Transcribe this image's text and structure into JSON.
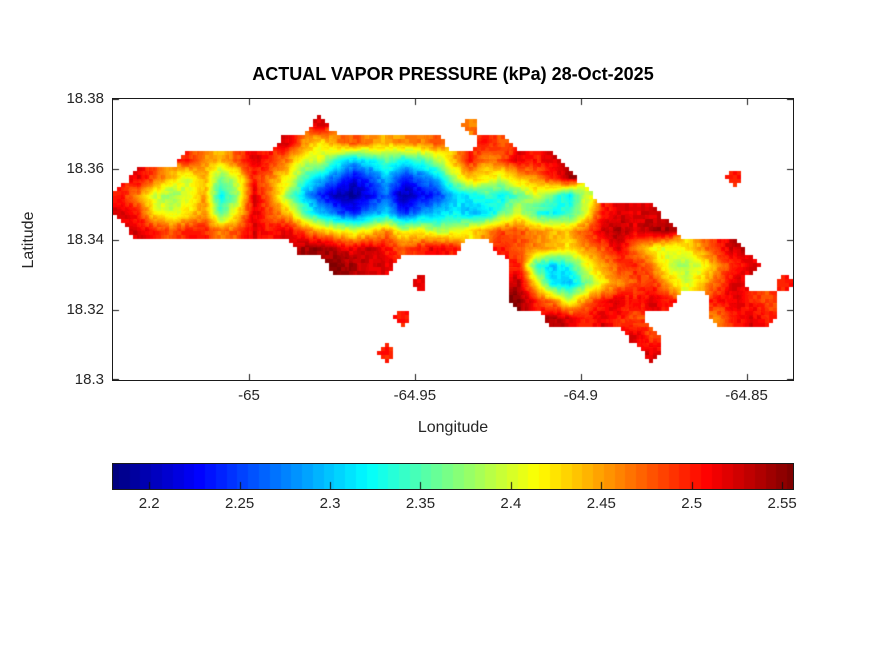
{
  "figure": {
    "title": "ACTUAL VAPOR PRESSURE (kPa) 28-Oct-2025",
    "xlabel": "Longitude",
    "ylabel": "Latitude",
    "background": "#ffffff",
    "axis_color": "#1a1a1a",
    "text_color": "#262626"
  },
  "chart_data": {
    "type": "heatmap",
    "title": "ACTUAL VAPOR PRESSURE (kPa) 28-Oct-2025",
    "xlabel": "Longitude",
    "ylabel": "Latitude",
    "units": "kPa",
    "xlim": [
      -65.041,
      -64.836
    ],
    "ylim": [
      18.3,
      18.38
    ],
    "x_ticks": [
      -65,
      -64.95,
      -64.9,
      -64.85
    ],
    "x_tick_labels": [
      "-65",
      "-64.95",
      "-64.9",
      "-64.85"
    ],
    "y_ticks": [
      18.3,
      18.32,
      18.34,
      18.36,
      18.38
    ],
    "y_tick_labels": [
      "18.3",
      "18.32",
      "18.34",
      "18.36",
      "18.38"
    ],
    "colormap": "jet",
    "grid_lines": false,
    "colorbar": {
      "orientation": "horizontal",
      "vmin": 2.18,
      "vmax": 2.556,
      "ticks": [
        2.2,
        2.25,
        2.3,
        2.35,
        2.4,
        2.45,
        2.5,
        2.55
      ],
      "tick_labels": [
        "2.2",
        "2.25",
        "2.3",
        "2.35",
        "2.4",
        "2.45",
        "2.5",
        "2.55"
      ]
    },
    "grid_definition": {
      "lon_min": -65.041,
      "lon_step": 0.005,
      "lat_max": 18.38,
      "lat_step": -0.005,
      "ncols": 41,
      "nrows": 16,
      "note": "actual vapor pressure in kPa; null = ocean (white)"
    },
    "values": [
      [
        null,
        null,
        null,
        null,
        null,
        null,
        null,
        null,
        null,
        null,
        null,
        null,
        null,
        null,
        null,
        null,
        null,
        null,
        null,
        null,
        null,
        null,
        null,
        null,
        null,
        null,
        null,
        null,
        null,
        null,
        null,
        null,
        null,
        null,
        null,
        null,
        null,
        null,
        null,
        null,
        null
      ],
      [
        null,
        null,
        null,
        null,
        null,
        null,
        null,
        null,
        null,
        null,
        null,
        null,
        2.52,
        null,
        null,
        null,
        null,
        null,
        null,
        null,
        null,
        2.46,
        null,
        null,
        null,
        null,
        null,
        null,
        null,
        null,
        null,
        null,
        null,
        null,
        null,
        null,
        null,
        null,
        null,
        null,
        null
      ],
      [
        null,
        null,
        null,
        null,
        null,
        null,
        null,
        null,
        null,
        null,
        2.52,
        2.46,
        2.42,
        2.46,
        2.48,
        2.46,
        2.44,
        2.46,
        2.46,
        2.48,
        null,
        null,
        2.5,
        2.48,
        null,
        null,
        null,
        null,
        null,
        null,
        null,
        null,
        null,
        null,
        null,
        null,
        null,
        null,
        null,
        null,
        null
      ],
      [
        null,
        null,
        null,
        null,
        2.5,
        2.46,
        2.44,
        2.48,
        2.52,
        2.5,
        2.46,
        2.4,
        2.4,
        2.34,
        2.3,
        2.32,
        2.36,
        2.32,
        2.34,
        2.38,
        2.44,
        2.5,
        2.46,
        2.48,
        2.52,
        2.5,
        2.52,
        null,
        null,
        null,
        null,
        null,
        null,
        null,
        null,
        null,
        null,
        null,
        null,
        null,
        null
      ],
      [
        null,
        2.52,
        2.48,
        2.44,
        2.4,
        2.44,
        2.36,
        2.4,
        2.5,
        2.46,
        2.42,
        2.35,
        2.3,
        2.26,
        2.22,
        2.25,
        2.3,
        2.24,
        2.26,
        2.3,
        2.38,
        2.44,
        2.42,
        2.4,
        2.44,
        2.46,
        2.5,
        2.54,
        null,
        null,
        null,
        null,
        null,
        null,
        null,
        null,
        null,
        2.5,
        null,
        null,
        null
      ],
      [
        2.5,
        2.46,
        2.4,
        2.37,
        2.4,
        2.45,
        2.32,
        2.38,
        2.52,
        2.46,
        2.38,
        2.3,
        2.24,
        2.2,
        2.19,
        2.22,
        2.27,
        2.19,
        2.22,
        2.24,
        2.3,
        2.32,
        2.34,
        2.32,
        2.36,
        2.4,
        2.36,
        2.31,
        2.4,
        null,
        null,
        null,
        null,
        null,
        null,
        null,
        null,
        null,
        null,
        null,
        null
      ],
      [
        2.52,
        2.5,
        2.42,
        2.4,
        2.42,
        2.46,
        2.35,
        2.42,
        2.52,
        2.48,
        2.44,
        2.36,
        2.3,
        2.26,
        2.24,
        2.28,
        2.3,
        2.24,
        2.28,
        2.3,
        2.32,
        2.3,
        2.3,
        2.36,
        2.4,
        2.34,
        2.32,
        2.34,
        2.4,
        2.5,
        2.52,
        2.52,
        2.52,
        null,
        null,
        null,
        null,
        null,
        null,
        null,
        null
      ],
      [
        null,
        2.52,
        2.5,
        2.48,
        2.5,
        2.5,
        2.46,
        2.48,
        2.52,
        2.5,
        2.52,
        2.48,
        2.44,
        2.42,
        2.4,
        2.42,
        2.46,
        2.4,
        2.42,
        2.38,
        2.4,
        2.42,
        2.46,
        2.48,
        2.48,
        2.46,
        2.44,
        2.44,
        2.48,
        2.52,
        2.54,
        2.52,
        2.54,
        2.54,
        null,
        null,
        null,
        null,
        null,
        null,
        null
      ],
      [
        null,
        null,
        null,
        null,
        null,
        null,
        null,
        null,
        null,
        null,
        null,
        2.54,
        2.55,
        2.53,
        2.51,
        2.53,
        2.5,
        2.48,
        2.5,
        2.52,
        2.5,
        null,
        null,
        2.5,
        2.48,
        2.46,
        2.44,
        2.42,
        2.46,
        2.48,
        2.52,
        2.46,
        2.42,
        2.4,
        2.42,
        2.46,
        2.5,
        2.53,
        null,
        null,
        null
      ],
      [
        null,
        null,
        null,
        null,
        null,
        null,
        null,
        null,
        null,
        null,
        null,
        null,
        null,
        2.55,
        2.54,
        2.52,
        2.52,
        null,
        null,
        null,
        null,
        null,
        null,
        null,
        2.5,
        2.34,
        2.3,
        2.33,
        2.4,
        2.45,
        2.48,
        2.5,
        2.46,
        2.4,
        2.38,
        2.4,
        2.46,
        2.5,
        2.52,
        null,
        null
      ],
      [
        null,
        null,
        null,
        null,
        null,
        null,
        null,
        null,
        null,
        null,
        null,
        null,
        null,
        null,
        null,
        null,
        null,
        null,
        2.52,
        null,
        null,
        null,
        null,
        null,
        2.53,
        2.42,
        2.32,
        2.3,
        2.36,
        2.42,
        2.46,
        2.48,
        2.5,
        2.44,
        2.4,
        2.44,
        2.48,
        2.52,
        null,
        null,
        2.5
      ],
      [
        null,
        null,
        null,
        null,
        null,
        null,
        null,
        null,
        null,
        null,
        null,
        null,
        null,
        null,
        null,
        null,
        null,
        null,
        null,
        null,
        null,
        null,
        null,
        null,
        2.55,
        2.5,
        2.46,
        2.4,
        2.46,
        2.5,
        2.52,
        2.5,
        2.52,
        2.5,
        null,
        null,
        2.5,
        2.52,
        2.5,
        2.48,
        null
      ],
      [
        null,
        null,
        null,
        null,
        null,
        null,
        null,
        null,
        null,
        null,
        null,
        null,
        null,
        null,
        null,
        null,
        null,
        2.5,
        null,
        null,
        null,
        null,
        null,
        null,
        null,
        null,
        2.54,
        2.52,
        2.5,
        2.52,
        2.5,
        2.48,
        null,
        null,
        null,
        null,
        2.46,
        2.5,
        2.52,
        2.5,
        null
      ],
      [
        null,
        null,
        null,
        null,
        null,
        null,
        null,
        null,
        null,
        null,
        null,
        null,
        null,
        null,
        null,
        null,
        null,
        null,
        null,
        null,
        null,
        null,
        null,
        null,
        null,
        null,
        null,
        null,
        null,
        null,
        null,
        2.52,
        2.48,
        null,
        null,
        null,
        null,
        null,
        null,
        null,
        null
      ],
      [
        null,
        null,
        null,
        null,
        null,
        null,
        null,
        null,
        null,
        null,
        null,
        null,
        null,
        null,
        null,
        null,
        2.5,
        null,
        null,
        null,
        null,
        null,
        null,
        null,
        null,
        null,
        null,
        null,
        null,
        null,
        null,
        null,
        2.52,
        null,
        null,
        null,
        null,
        null,
        null,
        null,
        null
      ],
      [
        null,
        null,
        null,
        null,
        null,
        null,
        null,
        null,
        null,
        null,
        null,
        null,
        null,
        null,
        null,
        null,
        null,
        null,
        null,
        null,
        null,
        null,
        null,
        null,
        null,
        null,
        null,
        null,
        null,
        null,
        null,
        null,
        null,
        null,
        null,
        null,
        null,
        null,
        null,
        null,
        null
      ]
    ]
  }
}
